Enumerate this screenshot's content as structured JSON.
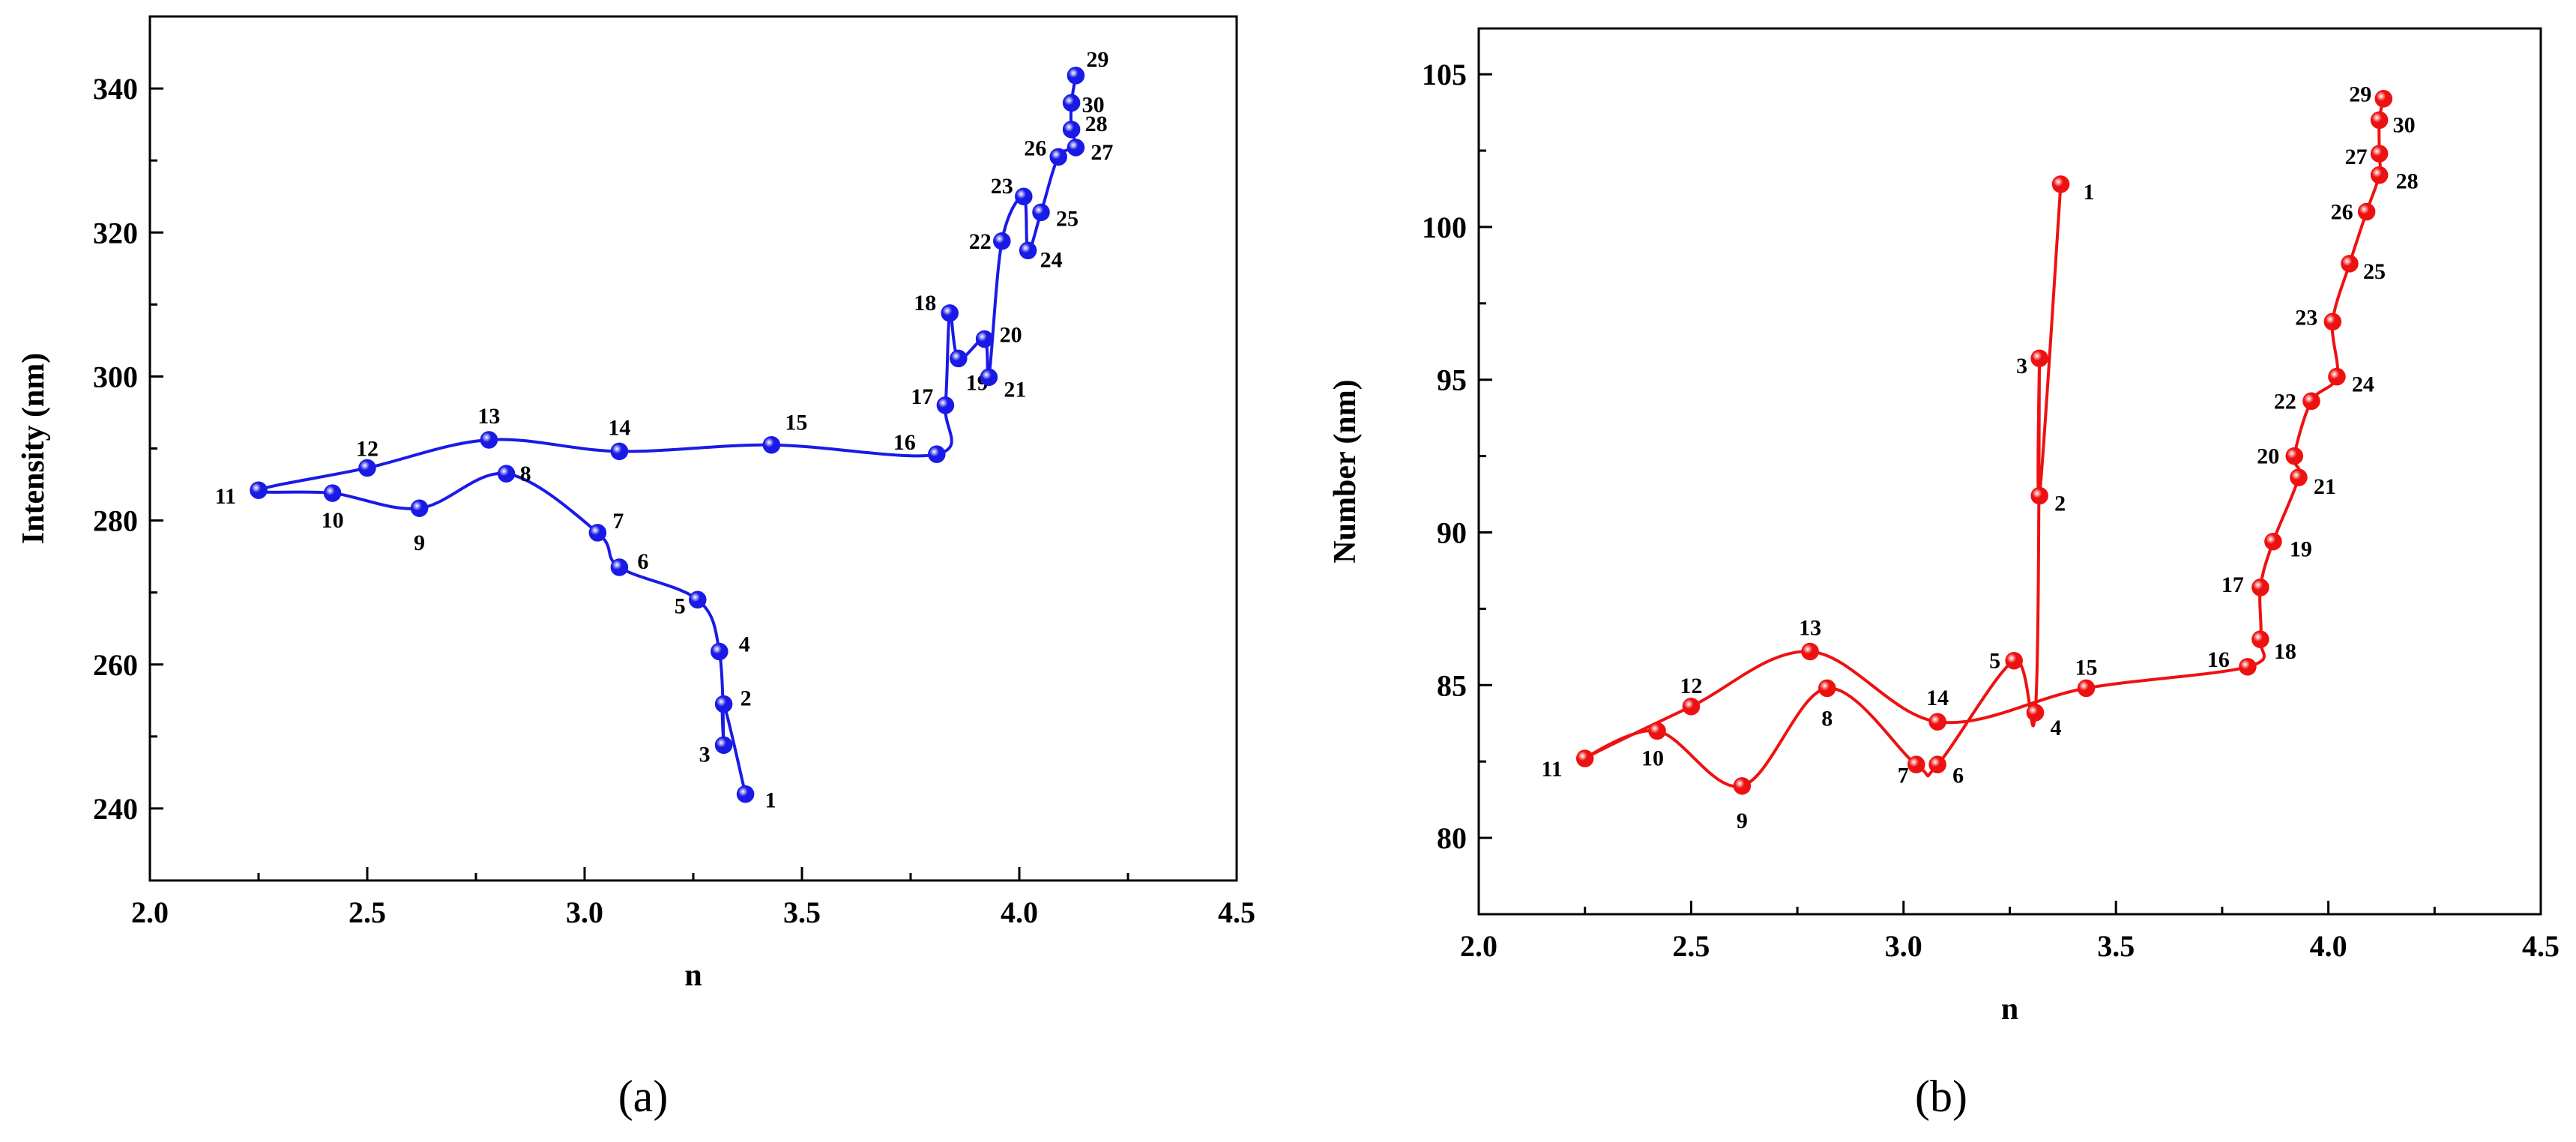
{
  "chart_data": [
    {
      "type": "line",
      "panel_label": "(a)",
      "title": "",
      "xlabel": "n",
      "ylabel": "Intensity (nm)",
      "xlim": [
        2.0,
        4.5
      ],
      "ylim": [
        230,
        350
      ],
      "xticks": [
        2.0,
        2.5,
        3.0,
        3.5,
        4.0,
        4.5
      ],
      "xtick_labels": [
        "2.0",
        "2.5",
        "3.0",
        "3.5",
        "4.0",
        "4.5"
      ],
      "yticks": [
        240,
        260,
        280,
        300,
        320,
        340
      ],
      "ytick_labels": [
        "240",
        "260",
        "280",
        "300",
        "320",
        "340"
      ],
      "color": "#1a1ae6",
      "grid": false,
      "points": [
        {
          "label": "1",
          "x": 3.37,
          "y": 242.0
        },
        {
          "label": "2",
          "x": 3.32,
          "y": 254.5
        },
        {
          "label": "3",
          "x": 3.32,
          "y": 248.8
        },
        {
          "label": "4",
          "x": 3.31,
          "y": 261.8
        },
        {
          "label": "5",
          "x": 3.26,
          "y": 269.0
        },
        {
          "label": "6",
          "x": 3.08,
          "y": 273.5
        },
        {
          "label": "7",
          "x": 3.03,
          "y": 278.3
        },
        {
          "label": "8",
          "x": 2.82,
          "y": 286.5
        },
        {
          "label": "9",
          "x": 2.62,
          "y": 281.7
        },
        {
          "label": "10",
          "x": 2.42,
          "y": 283.8
        },
        {
          "label": "11",
          "x": 2.25,
          "y": 284.2
        },
        {
          "label": "12",
          "x": 2.5,
          "y": 287.3
        },
        {
          "label": "13",
          "x": 2.78,
          "y": 291.2
        },
        {
          "label": "14",
          "x": 3.08,
          "y": 289.6
        },
        {
          "label": "15",
          "x": 3.43,
          "y": 290.5
        },
        {
          "label": "16",
          "x": 3.81,
          "y": 289.2
        },
        {
          "label": "17",
          "x": 3.83,
          "y": 296.0
        },
        {
          "label": "18",
          "x": 3.84,
          "y": 308.8
        },
        {
          "label": "19",
          "x": 3.86,
          "y": 302.5
        },
        {
          "label": "20",
          "x": 3.92,
          "y": 305.2
        },
        {
          "label": "21",
          "x": 3.93,
          "y": 299.9
        },
        {
          "label": "22",
          "x": 3.96,
          "y": 318.8
        },
        {
          "label": "23",
          "x": 4.01,
          "y": 325.0
        },
        {
          "label": "24",
          "x": 4.02,
          "y": 317.5
        },
        {
          "label": "25",
          "x": 4.05,
          "y": 322.8
        },
        {
          "label": "26",
          "x": 4.09,
          "y": 330.5
        },
        {
          "label": "27",
          "x": 4.13,
          "y": 331.8
        },
        {
          "label": "28",
          "x": 4.12,
          "y": 334.3
        },
        {
          "label": "30",
          "x": 4.12,
          "y": 338.0
        },
        {
          "label": "29",
          "x": 4.13,
          "y": 341.8
        }
      ]
    },
    {
      "type": "line",
      "panel_label": "(b)",
      "title": "",
      "xlabel": "n",
      "ylabel": "Number (nm)",
      "xlim": [
        2.0,
        4.5
      ],
      "ylim": [
        77.5,
        106.5
      ],
      "xticks": [
        2.0,
        2.5,
        3.0,
        3.5,
        4.0,
        4.5
      ],
      "xtick_labels": [
        "2.0",
        "2.5",
        "3.0",
        "3.5",
        "4.0",
        "4.5"
      ],
      "yticks": [
        80,
        85,
        90,
        95,
        100,
        105
      ],
      "ytick_labels": [
        "80",
        "85",
        "90",
        "95",
        "100",
        "105"
      ],
      "color": "#ee1111",
      "grid": false,
      "points": [
        {
          "label": "1",
          "x": 3.37,
          "y": 101.4
        },
        {
          "label": "2",
          "x": 3.32,
          "y": 91.2
        },
        {
          "label": "3",
          "x": 3.32,
          "y": 95.7
        },
        {
          "label": "4",
          "x": 3.31,
          "y": 84.1
        },
        {
          "label": "5",
          "x": 3.26,
          "y": 85.8
        },
        {
          "label": "6",
          "x": 3.08,
          "y": 82.4
        },
        {
          "label": "7",
          "x": 3.03,
          "y": 82.4
        },
        {
          "label": "8",
          "x": 2.82,
          "y": 84.9
        },
        {
          "label": "9",
          "x": 2.62,
          "y": 81.7
        },
        {
          "label": "10",
          "x": 2.42,
          "y": 83.5
        },
        {
          "label": "11",
          "x": 2.25,
          "y": 82.6
        },
        {
          "label": "12",
          "x": 2.5,
          "y": 84.3
        },
        {
          "label": "13",
          "x": 2.78,
          "y": 86.1
        },
        {
          "label": "14",
          "x": 3.08,
          "y": 83.8
        },
        {
          "label": "15",
          "x": 3.43,
          "y": 84.9
        },
        {
          "label": "16",
          "x": 3.81,
          "y": 85.6
        },
        {
          "label": "18",
          "x": 3.84,
          "y": 86.5
        },
        {
          "label": "17",
          "x": 3.84,
          "y": 88.2
        },
        {
          "label": "19",
          "x": 3.87,
          "y": 89.7
        },
        {
          "label": "21",
          "x": 3.93,
          "y": 91.8
        },
        {
          "label": "20",
          "x": 3.92,
          "y": 92.5
        },
        {
          "label": "22",
          "x": 3.96,
          "y": 94.3
        },
        {
          "label": "24",
          "x": 4.02,
          "y": 95.1
        },
        {
          "label": "23",
          "x": 4.01,
          "y": 96.9
        },
        {
          "label": "25",
          "x": 4.05,
          "y": 98.8
        },
        {
          "label": "26",
          "x": 4.09,
          "y": 100.5
        },
        {
          "label": "28",
          "x": 4.12,
          "y": 101.7
        },
        {
          "label": "27",
          "x": 4.12,
          "y": 102.4
        },
        {
          "label": "30",
          "x": 4.12,
          "y": 103.5
        },
        {
          "label": "29",
          "x": 4.13,
          "y": 104.2
        }
      ]
    }
  ]
}
